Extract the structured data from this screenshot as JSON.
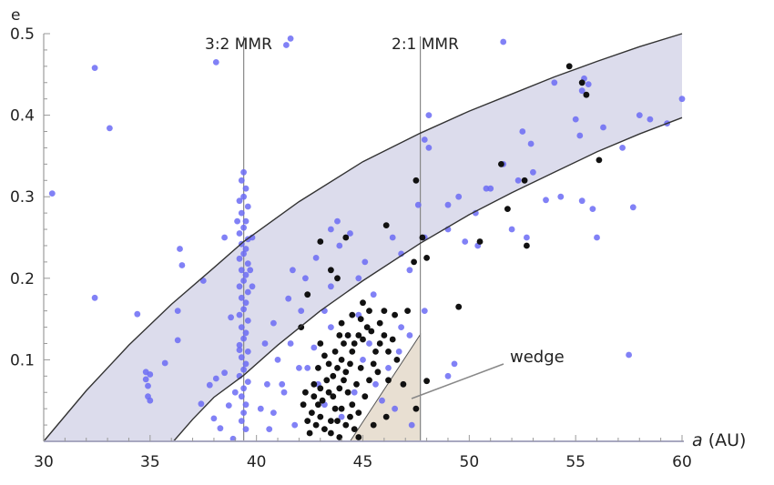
{
  "chart_data": {
    "type": "scatter",
    "title": "",
    "xlabel": "a (AU)",
    "ylabel": "e",
    "xlim": [
      30,
      60
    ],
    "ylim": [
      0,
      0.5
    ],
    "x_ticks": [
      30,
      35,
      40,
      45,
      50,
      55,
      60
    ],
    "y_ticks": [
      0.1,
      0.2,
      0.3,
      0.4,
      0.5
    ],
    "grid": false,
    "legend": null,
    "annotations": [
      {
        "text": "3:2 MMR",
        "type": "vertical-line",
        "x": 39.4
      },
      {
        "text": "2:1 MMR",
        "type": "vertical-line",
        "x": 47.7
      },
      {
        "text": "wedge",
        "type": "arrow-label",
        "label_at": [
          50.8,
          0.105
        ],
        "points_to": [
          45.9,
          0.05
        ]
      }
    ],
    "regions": [
      {
        "name": "perihelion band",
        "fill": "#dcdcec",
        "upper_curve": [
          [
            30,
            0
          ],
          [
            32,
            0.062
          ],
          [
            34,
            0.118
          ],
          [
            36,
            0.168
          ],
          [
            38,
            0.213
          ],
          [
            39.4,
            0.245
          ],
          [
            42,
            0.294
          ],
          [
            45,
            0.343
          ],
          [
            47.7,
            0.378
          ],
          [
            50,
            0.405
          ],
          [
            52,
            0.426
          ],
          [
            54,
            0.447
          ],
          [
            56,
            0.466
          ],
          [
            58,
            0.484
          ],
          [
            60,
            0.5
          ]
        ],
        "lower_curve": [
          [
            36.1,
            0
          ],
          [
            37,
            0.027
          ],
          [
            38,
            0.054
          ],
          [
            39.4,
            0.081
          ],
          [
            41,
            0.118
          ],
          [
            43,
            0.16
          ],
          [
            45,
            0.197
          ],
          [
            47.7,
            0.243
          ],
          [
            50,
            0.278
          ],
          [
            52,
            0.305
          ],
          [
            54,
            0.33
          ],
          [
            56,
            0.355
          ],
          [
            58,
            0.377
          ],
          [
            60,
            0.397
          ]
        ]
      },
      {
        "name": "wedge",
        "fill": "#e8dfd2",
        "polygon": [
          [
            44.4,
            0
          ],
          [
            47.7,
            0.131
          ],
          [
            47.7,
            0
          ]
        ]
      }
    ],
    "series": [
      {
        "name": "blue objects",
        "color": "#6b6bf5",
        "points": [
          [
            30.4,
            0.304
          ],
          [
            32.4,
            0.458
          ],
          [
            33.1,
            0.384
          ],
          [
            38.1,
            0.465
          ],
          [
            41.6,
            0.494
          ],
          [
            41.4,
            0.486
          ],
          [
            51.6,
            0.49
          ],
          [
            32.4,
            0.176
          ],
          [
            34.4,
            0.156
          ],
          [
            34.8,
            0.085
          ],
          [
            34.8,
            0.076
          ],
          [
            34.9,
            0.068
          ],
          [
            35.0,
            0.082
          ],
          [
            34.9,
            0.055
          ],
          [
            35.0,
            0.05
          ],
          [
            35.7,
            0.096
          ],
          [
            36.3,
            0.16
          ],
          [
            36.3,
            0.124
          ],
          [
            36.5,
            0.216
          ],
          [
            36.4,
            0.236
          ],
          [
            37.5,
            0.197
          ],
          [
            37.4,
            0.046
          ],
          [
            37.8,
            0.069
          ],
          [
            38.0,
            0.028
          ],
          [
            38.1,
            0.077
          ],
          [
            38.3,
            0.016
          ],
          [
            38.5,
            0.084
          ],
          [
            38.7,
            0.044
          ],
          [
            38.9,
            0.003
          ],
          [
            39.0,
            0.06
          ],
          [
            39.2,
            0.112
          ],
          [
            38.8,
            0.152
          ],
          [
            38.5,
            0.25
          ],
          [
            39.4,
            0.33
          ],
          [
            39.3,
            0.32
          ],
          [
            39.5,
            0.31
          ],
          [
            39.4,
            0.3
          ],
          [
            39.2,
            0.295
          ],
          [
            39.6,
            0.288
          ],
          [
            39.3,
            0.28
          ],
          [
            39.5,
            0.27
          ],
          [
            39.4,
            0.262
          ],
          [
            39.2,
            0.255
          ],
          [
            39.6,
            0.248
          ],
          [
            39.3,
            0.242
          ],
          [
            39.5,
            0.236
          ],
          [
            39.4,
            0.23
          ],
          [
            39.2,
            0.224
          ],
          [
            39.6,
            0.218
          ],
          [
            39.3,
            0.21
          ],
          [
            39.5,
            0.204
          ],
          [
            39.4,
            0.197
          ],
          [
            39.2,
            0.19
          ],
          [
            39.6,
            0.183
          ],
          [
            39.3,
            0.176
          ],
          [
            39.5,
            0.17
          ],
          [
            39.4,
            0.162
          ],
          [
            39.2,
            0.155
          ],
          [
            39.6,
            0.148
          ],
          [
            39.3,
            0.14
          ],
          [
            39.5,
            0.133
          ],
          [
            39.4,
            0.126
          ],
          [
            39.2,
            0.118
          ],
          [
            39.6,
            0.11
          ],
          [
            39.3,
            0.103
          ],
          [
            39.5,
            0.095
          ],
          [
            39.4,
            0.088
          ],
          [
            39.2,
            0.08
          ],
          [
            39.6,
            0.073
          ],
          [
            39.4,
            0.065
          ],
          [
            39.3,
            0.055
          ],
          [
            39.5,
            0.045
          ],
          [
            39.4,
            0.035
          ],
          [
            39.3,
            0.025
          ],
          [
            39.5,
            0.015
          ],
          [
            39.7,
            0.21
          ],
          [
            39.8,
            0.25
          ],
          [
            39.1,
            0.27
          ],
          [
            39.8,
            0.19
          ],
          [
            40.2,
            0.04
          ],
          [
            40.5,
            0.07
          ],
          [
            40.8,
            0.035
          ],
          [
            41.0,
            0.1
          ],
          [
            41.3,
            0.06
          ],
          [
            41.6,
            0.12
          ],
          [
            41.8,
            0.02
          ],
          [
            42.0,
            0.09
          ],
          [
            40.4,
            0.12
          ],
          [
            40.8,
            0.145
          ],
          [
            41.5,
            0.175
          ],
          [
            41.7,
            0.21
          ],
          [
            42.3,
            0.2
          ],
          [
            42.8,
            0.225
          ],
          [
            43.5,
            0.19
          ],
          [
            43.2,
            0.16
          ],
          [
            43.9,
            0.24
          ],
          [
            44.8,
            0.2
          ],
          [
            45.1,
            0.22
          ],
          [
            45.5,
            0.18
          ],
          [
            46.4,
            0.25
          ],
          [
            46.8,
            0.23
          ],
          [
            47.2,
            0.21
          ],
          [
            47.9,
            0.25
          ],
          [
            47.6,
            0.29
          ],
          [
            47.9,
            0.37
          ],
          [
            48.1,
            0.4
          ],
          [
            48.1,
            0.36
          ],
          [
            49.0,
            0.26
          ],
          [
            49.8,
            0.245
          ],
          [
            50.4,
            0.24
          ],
          [
            49.5,
            0.3
          ],
          [
            49.0,
            0.29
          ],
          [
            50.3,
            0.28
          ],
          [
            50.8,
            0.31
          ],
          [
            51.6,
            0.34
          ],
          [
            52.0,
            0.26
          ],
          [
            52.7,
            0.25
          ],
          [
            52.5,
            0.38
          ],
          [
            53.0,
            0.33
          ],
          [
            52.9,
            0.365
          ],
          [
            54.0,
            0.44
          ],
          [
            55.0,
            0.395
          ],
          [
            55.3,
            0.43
          ],
          [
            55.6,
            0.438
          ],
          [
            55.4,
            0.445
          ],
          [
            56.3,
            0.385
          ],
          [
            55.2,
            0.375
          ],
          [
            57.2,
            0.36
          ],
          [
            57.7,
            0.287
          ],
          [
            55.3,
            0.295
          ],
          [
            55.8,
            0.285
          ],
          [
            56.0,
            0.25
          ],
          [
            58.5,
            0.395
          ],
          [
            58.0,
            0.4
          ],
          [
            59.3,
            0.39
          ],
          [
            60,
            0.42
          ],
          [
            57.5,
            0.106
          ],
          [
            53.6,
            0.296
          ],
          [
            54.3,
            0.3
          ],
          [
            52.3,
            0.32
          ],
          [
            51.0,
            0.31
          ],
          [
            49.3,
            0.095
          ],
          [
            49.0,
            0.08
          ],
          [
            47.9,
            0.16
          ],
          [
            46.8,
            0.14
          ],
          [
            46.2,
            0.09
          ],
          [
            45.6,
            0.07
          ],
          [
            46.5,
            0.04
          ],
          [
            47.3,
            0.02
          ],
          [
            45.9,
            0.05
          ],
          [
            46.7,
            0.11
          ],
          [
            47.2,
            0.13
          ],
          [
            44.8,
            0.155
          ],
          [
            44.3,
            0.13
          ],
          [
            43.5,
            0.14
          ],
          [
            42.7,
            0.115
          ],
          [
            42.4,
            0.09
          ],
          [
            42.9,
            0.07
          ],
          [
            43.2,
            0.045
          ],
          [
            44.0,
            0.03
          ],
          [
            44.6,
            0.06
          ],
          [
            45.0,
            0.1
          ],
          [
            45.3,
            0.12
          ],
          [
            42.1,
            0.16
          ],
          [
            41.2,
            0.07
          ],
          [
            40.6,
            0.015
          ],
          [
            43.8,
            0.27
          ],
          [
            44.4,
            0.255
          ],
          [
            43.5,
            0.26
          ]
        ]
      },
      {
        "name": "black objects",
        "color": "#111111",
        "points": [
          [
            54.7,
            0.46
          ],
          [
            55.3,
            0.44
          ],
          [
            55.5,
            0.425
          ],
          [
            56.1,
            0.345
          ],
          [
            51.5,
            0.34
          ],
          [
            52.6,
            0.32
          ],
          [
            51.8,
            0.285
          ],
          [
            52.7,
            0.24
          ],
          [
            50.5,
            0.245
          ],
          [
            49.5,
            0.165
          ],
          [
            47.5,
            0.32
          ],
          [
            47.8,
            0.25
          ],
          [
            48.0,
            0.225
          ],
          [
            47.4,
            0.22
          ],
          [
            46.1,
            0.265
          ],
          [
            44.2,
            0.25
          ],
          [
            43.0,
            0.245
          ],
          [
            42.4,
            0.18
          ],
          [
            42.1,
            0.14
          ],
          [
            43.5,
            0.21
          ],
          [
            43.8,
            0.2
          ],
          [
            45.0,
            0.17
          ],
          [
            44.5,
            0.155
          ],
          [
            46.0,
            0.16
          ],
          [
            46.5,
            0.155
          ],
          [
            47.1,
            0.16
          ],
          [
            46.2,
            0.075
          ],
          [
            46.9,
            0.07
          ],
          [
            47.5,
            0.04
          ],
          [
            46.1,
            0.03
          ],
          [
            45.5,
            0.02
          ],
          [
            44.8,
            0.005
          ],
          [
            48.0,
            0.074
          ],
          [
            42.8,
            0.02
          ],
          [
            43.0,
            0.03
          ],
          [
            43.2,
            0.015
          ],
          [
            43.5,
            0.025
          ],
          [
            43.7,
            0.04
          ],
          [
            43.1,
            0.05
          ],
          [
            43.4,
            0.06
          ],
          [
            43.6,
            0.055
          ],
          [
            43.9,
            0.065
          ],
          [
            44.1,
            0.075
          ],
          [
            43.3,
            0.075
          ],
          [
            43.0,
            0.065
          ],
          [
            42.9,
            0.045
          ],
          [
            42.6,
            0.035
          ],
          [
            42.7,
            0.055
          ],
          [
            43.8,
            0.09
          ],
          [
            44.0,
            0.1
          ],
          [
            44.2,
            0.085
          ],
          [
            44.4,
            0.095
          ],
          [
            43.6,
            0.08
          ],
          [
            43.4,
            0.095
          ],
          [
            43.7,
            0.11
          ],
          [
            44.5,
            0.11
          ],
          [
            44.6,
            0.12
          ],
          [
            44.8,
            0.13
          ],
          [
            45.0,
            0.125
          ],
          [
            45.2,
            0.14
          ],
          [
            45.4,
            0.135
          ],
          [
            44.3,
            0.13
          ],
          [
            44.1,
            0.12
          ],
          [
            43.9,
            0.13
          ],
          [
            45.6,
            0.11
          ],
          [
            45.8,
            0.12
          ],
          [
            46.0,
            0.13
          ],
          [
            45.5,
            0.095
          ],
          [
            45.7,
            0.085
          ],
          [
            44.9,
            0.09
          ],
          [
            44.7,
            0.07
          ],
          [
            44.3,
            0.06
          ],
          [
            44.5,
            0.045
          ],
          [
            44.0,
            0.04
          ],
          [
            43.8,
            0.025
          ],
          [
            44.2,
            0.02
          ],
          [
            44.6,
            0.015
          ],
          [
            44.4,
            0.03
          ],
          [
            42.5,
            0.01
          ],
          [
            42.4,
            0.025
          ],
          [
            43.9,
            0.005
          ],
          [
            44.9,
            0.15
          ],
          [
            45.3,
            0.16
          ],
          [
            45.8,
            0.145
          ],
          [
            46.4,
            0.125
          ],
          [
            46.6,
            0.1
          ],
          [
            43.2,
            0.105
          ],
          [
            42.9,
            0.09
          ],
          [
            43.0,
            0.12
          ],
          [
            42.7,
            0.07
          ],
          [
            44.0,
            0.145
          ],
          [
            45.1,
            0.055
          ],
          [
            45.3,
            0.075
          ],
          [
            43.5,
            0.01
          ],
          [
            44.8,
            0.035
          ],
          [
            46.2,
            0.11
          ],
          [
            42.2,
            0.045
          ],
          [
            42.3,
            0.06
          ]
        ]
      }
    ]
  },
  "labels": {
    "y_axis_label": "e",
    "x_axis_label_italic": "a",
    "x_axis_label_unit": " (AU)",
    "mmr_32": "3:2 MMR",
    "mmr_21": "2:1 MMR",
    "wedge": "wedge",
    "x_tick_labels": [
      "30",
      "35",
      "40",
      "45",
      "50",
      "55",
      "60"
    ],
    "y_tick_labels": [
      "0.1",
      "0.2",
      "0.3",
      "0.4",
      "0.5"
    ]
  },
  "colors": {
    "band_fill": "#dcdcec",
    "wedge_fill": "#e8dfd2",
    "curve_stroke": "#333333",
    "mmr_line": "#888888",
    "axis": "#a8a8c0"
  }
}
